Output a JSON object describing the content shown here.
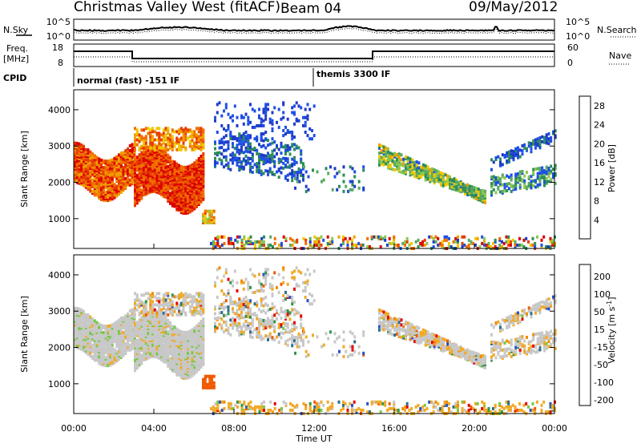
{
  "header": {
    "title": "Christmas Valley West (fitACF)",
    "beam": "Beam 04",
    "date": "09/May/2012"
  },
  "left_labels": {
    "nsky": "N.Sky",
    "freq_line1": "Freq.",
    "freq_line2": "[MHz]",
    "cpid": "CPID"
  },
  "right_labels": {
    "nsearch": "N.Search",
    "nave": "Nave"
  },
  "noise_axis": {
    "top": "10^5",
    "bottom": "10^0"
  },
  "freq_axis": {
    "left_top": "18",
    "left_bottom": "8",
    "right_top": "60",
    "right_bottom": "0"
  },
  "cpid_modes": [
    {
      "label": "normal (fast) -151 IF"
    },
    {
      "label": "themis 3300 IF"
    }
  ],
  "colors": {
    "power": [
      "#1e3cc8",
      "#1e50e6",
      "#2d8c5a",
      "#5aaa64",
      "#8cc850",
      "#f0c800",
      "#f0a000",
      "#f06e00",
      "#e63c00",
      "#dc0000"
    ],
    "velocity": [
      "#2850c8",
      "#2d6e8c",
      "#329650",
      "#78c846",
      "#c8c8c8",
      "#c8c8c8",
      "#f0aa28",
      "#f08c00",
      "#f05a00",
      "#e60000"
    ]
  },
  "chart_data": [
    {
      "type": "heatmap",
      "panel": "power",
      "xlabel": "",
      "ylabel": "Slant Range [km]",
      "xlim": [
        "00:00",
        "00:00"
      ],
      "ylim": [
        180,
        4550
      ],
      "yticks": [
        "1000",
        "2000",
        "3000",
        "4000"
      ],
      "colorbar": {
        "label": "Power [dB]",
        "ticks": [
          "4",
          "8",
          "12",
          "16",
          "20",
          "24",
          "28"
        ],
        "range": [
          0,
          30
        ]
      }
    },
    {
      "type": "heatmap",
      "panel": "velocity",
      "xlabel": "Time UT",
      "ylabel": "Slant Range [km]",
      "xlim": [
        "00:00",
        "00:00"
      ],
      "ylim": [
        180,
        4550
      ],
      "xticks": [
        "00:00",
        "04:00",
        "08:00",
        "12:00",
        "16:00",
        "20:00",
        "00:00"
      ],
      "yticks": [
        "1000",
        "2000",
        "3000",
        "4000"
      ],
      "colorbar": {
        "label": "Velocity [m s^-1]",
        "ticks": [
          "200",
          "100",
          "50",
          "15",
          "-15",
          "-50",
          "-100",
          "-200"
        ]
      }
    }
  ]
}
